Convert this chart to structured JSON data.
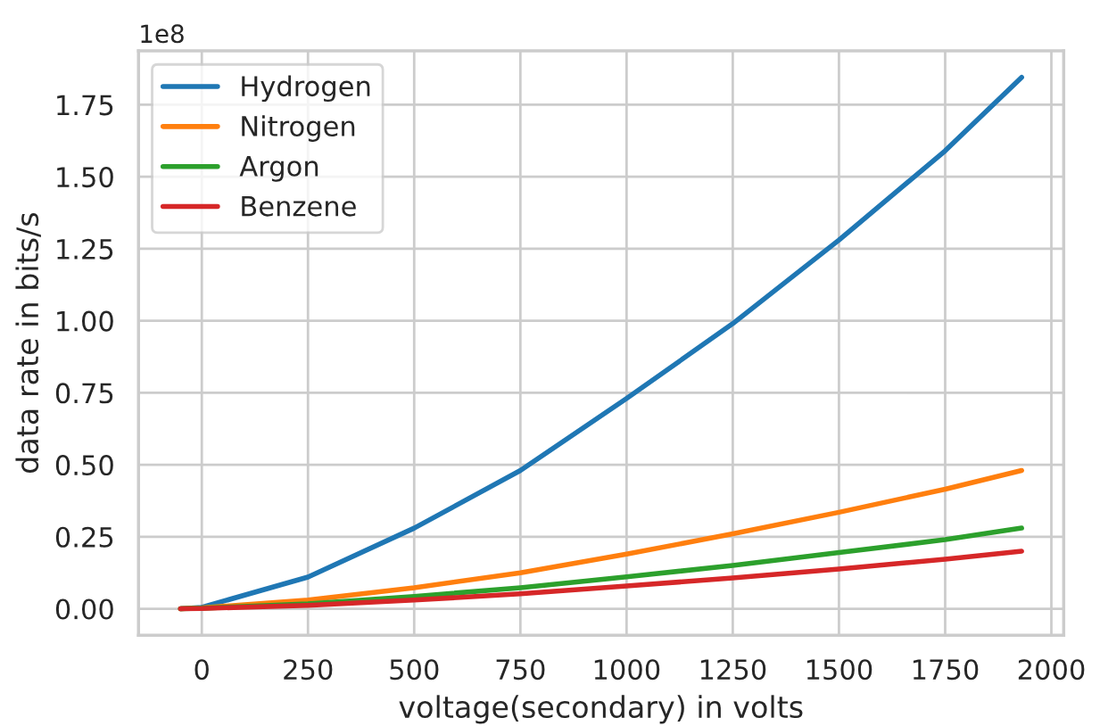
{
  "chart_data": {
    "type": "line",
    "xlabel": "voltage(secondary) in volts",
    "ylabel": "data rate in bits/s",
    "annotations": [
      "1e8"
    ],
    "x": [
      -50,
      0,
      250,
      500,
      750,
      1000,
      1250,
      1500,
      1750,
      1930
    ],
    "series": [
      {
        "name": "Hydrogen",
        "color": "#1f77b4",
        "values": [
          0,
          0.005,
          0.11,
          0.28,
          0.48,
          0.73,
          0.99,
          1.28,
          1.59,
          1.845
        ]
      },
      {
        "name": "Nitrogen",
        "color": "#ff7f0e",
        "values": [
          0,
          0.003,
          0.03,
          0.073,
          0.125,
          0.19,
          0.26,
          0.335,
          0.415,
          0.48
        ]
      },
      {
        "name": "Argon",
        "color": "#2ca02c",
        "values": [
          0,
          0.002,
          0.017,
          0.043,
          0.073,
          0.111,
          0.15,
          0.195,
          0.24,
          0.28
        ]
      },
      {
        "name": "Benzene",
        "color": "#d62728",
        "values": [
          0,
          0.001,
          0.012,
          0.03,
          0.052,
          0.079,
          0.107,
          0.138,
          0.172,
          0.2
        ]
      }
    ],
    "xlim": [
      -149,
      2029
    ],
    "xticks": [
      0,
      250,
      500,
      750,
      1000,
      1250,
      1500,
      1750,
      2000
    ],
    "ylim": [
      -0.092,
      1.937
    ],
    "yticks": [
      {
        "value": 0,
        "label": "0.00"
      },
      {
        "value": 0.25,
        "label": "0.25"
      },
      {
        "value": 0.5,
        "label": "0.50"
      },
      {
        "value": 0.75,
        "label": "0.75"
      },
      {
        "value": 1.0,
        "label": "1.00"
      },
      {
        "value": 1.25,
        "label": "1.25"
      },
      {
        "value": 1.5,
        "label": "1.50"
      },
      {
        "value": 1.75,
        "label": "1.75"
      }
    ],
    "grid": true,
    "legend": "top left",
    "marker": "none",
    "line_style": "solid"
  }
}
